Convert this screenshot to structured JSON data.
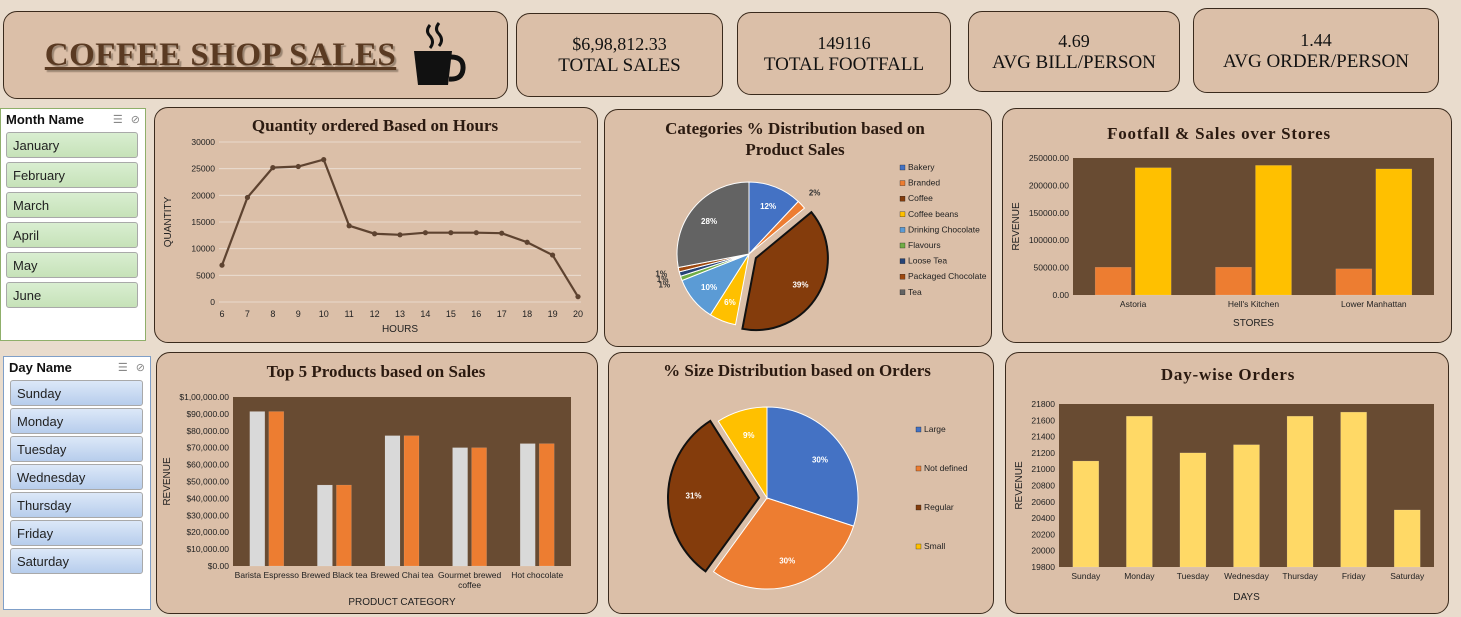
{
  "brand": {
    "title": "COFFEE SHOP SALES",
    "icon": "coffee-cup-icon"
  },
  "kpis": [
    {
      "value": "$6,98,812.33",
      "label": "TOTAL SALES"
    },
    {
      "value": "149116",
      "label": "TOTAL FOOTFALL"
    },
    {
      "value": "4.69",
      "label": "AVG BILL/PERSON"
    },
    {
      "value": "1.44",
      "label": "AVG ORDER/PERSON"
    }
  ],
  "month_slicer": {
    "header": "Month Name",
    "items": [
      "January",
      "February",
      "March",
      "April",
      "May",
      "June"
    ]
  },
  "day_slicer": {
    "header": "Day Name",
    "items": [
      "Sunday",
      "Monday",
      "Tuesday",
      "Wednesday",
      "Thursday",
      "Friday",
      "Saturday"
    ]
  },
  "colors": {
    "brown": "#6b4a30",
    "orange": "#ed7d31",
    "gold": "#ffc000",
    "plot_bg": "#684b32",
    "card_bg": "#dbbfa8"
  },
  "chart_data": [
    {
      "id": "hours",
      "type": "line",
      "title": "Quantity ordered Based on Hours",
      "xlabel": "HOURS",
      "ylabel": "QUANTITY",
      "x": [
        6,
        7,
        8,
        9,
        10,
        11,
        12,
        13,
        14,
        15,
        16,
        17,
        18,
        19,
        20
      ],
      "y": [
        6900,
        19600,
        25200,
        25400,
        26700,
        14300,
        12800,
        12600,
        13000,
        13000,
        13000,
        12900,
        11200,
        8800,
        1000
      ],
      "yticks": [
        "0",
        "5000",
        "10000",
        "15000",
        "20000",
        "25000",
        "30000"
      ],
      "ylim": [
        0,
        30000
      ],
      "grid": true
    },
    {
      "id": "categories",
      "type": "pie",
      "title": "Categories % Distribution based on Product Sales",
      "legend": "right",
      "labels": [
        "Bakery",
        "Branded",
        "Coffee",
        "Coffee beans",
        "Drinking Chocolate",
        "Flavours",
        "Loose Tea",
        "Packaged Chocolate",
        "Tea"
      ],
      "values": [
        12,
        2,
        39,
        6,
        10,
        1,
        1,
        1,
        28
      ],
      "data_labels": [
        "12%",
        "2%",
        "39%",
        "6%",
        "10%",
        "1%",
        "1%",
        "1%",
        "28%"
      ],
      "colors": [
        "#4472c4",
        "#ed7d31",
        "#843c0c",
        "#ffc000",
        "#5b9bd5",
        "#70ad47",
        "#264478",
        "#9e480e",
        "#636363"
      ]
    },
    {
      "id": "stores",
      "type": "bar",
      "title": "Footfall & Sales over Stores",
      "xlabel": "STORES",
      "ylabel": "REVENUE",
      "categories": [
        "Astoria",
        "Hell's Kitchen",
        "Lower Manhattan"
      ],
      "series": [
        {
          "values": [
            50599,
            50735,
            47782
          ],
          "color": "#ed7d31"
        },
        {
          "values": [
            232244,
            236511,
            230057
          ],
          "color": "#ffc000"
        }
      ],
      "yticks": [
        "0.00",
        "50000.00",
        "100000.00",
        "150000.00",
        "200000.00",
        "250000.00"
      ],
      "ylim": [
        0,
        250000
      ]
    },
    {
      "id": "products",
      "type": "bar",
      "title": "Top 5 Products based on Sales",
      "xlabel": "PRODUCT CATEGORY",
      "ylabel": "REVENUE",
      "categories": [
        "Barista Espresso",
        "Brewed Black tea",
        "Brewed Chai tea",
        "Gourmet brewed coffee",
        "Hot chocolate"
      ],
      "category_lines": [
        [
          "Barista Espresso"
        ],
        [
          "Brewed Black tea"
        ],
        [
          "Brewed Chai tea"
        ],
        [
          "Gourmet brewed",
          "coffee"
        ],
        [
          "Hot chocolate"
        ]
      ],
      "series": [
        {
          "values": [
            91400,
            47900,
            77100,
            70000,
            72400
          ],
          "color": "#d9d9d9"
        },
        {
          "values": [
            91400,
            47900,
            77100,
            70000,
            72400
          ],
          "color": "#ed7d31"
        }
      ],
      "yticks": [
        "$0.00",
        "$10,000.00",
        "$20,000.00",
        "$30,000.00",
        "$40,000.00",
        "$50,000.00",
        "$60,000.00",
        "$70,000.00",
        "$80,000.00",
        "$90,000.00",
        "$1,00,000.00"
      ],
      "ylim": [
        0,
        100000
      ]
    },
    {
      "id": "sizes",
      "type": "pie",
      "title": "% Size Distribution based on Orders",
      "legend": "right",
      "labels": [
        "Large",
        "Not defined",
        "Regular",
        "Small"
      ],
      "values": [
        30,
        30,
        31,
        9
      ],
      "data_labels": [
        "30%",
        "30%",
        "31%",
        "9%"
      ],
      "colors": [
        "#4472c4",
        "#ed7d31",
        "#843c0c",
        "#ffc000"
      ]
    },
    {
      "id": "days",
      "type": "bar",
      "title": "Day-wise Orders",
      "xlabel": "DAYS",
      "ylabel": "REVENUE",
      "categories": [
        "Sunday",
        "Monday",
        "Tuesday",
        "Wednesday",
        "Thursday",
        "Friday",
        "Saturday"
      ],
      "series": [
        {
          "values": [
            21100,
            21650,
            21200,
            21300,
            21650,
            21700,
            20500
          ],
          "color": "#ffd966"
        }
      ],
      "yticks": [
        "19800",
        "20000",
        "20200",
        "20400",
        "20600",
        "20800",
        "21000",
        "21200",
        "21400",
        "21600",
        "21800"
      ],
      "ylim": [
        19800,
        21800
      ]
    }
  ]
}
